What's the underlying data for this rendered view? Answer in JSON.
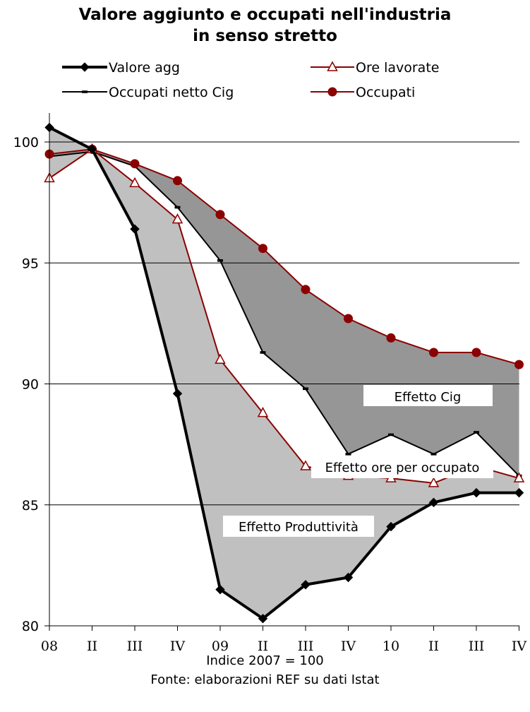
{
  "title_line1": "Valore aggiunto e occupati nell'industria",
  "title_line2": "in senso stretto",
  "footer_line1": "Indice 2007 = 100",
  "footer_line2": "Fonte: elaborazioni REF su dati Istat",
  "chart_data": {
    "type": "line",
    "title": "Valore aggiunto e occupati nell'industria in senso stretto",
    "categories": [
      "08",
      "II",
      "III",
      "IV",
      "09",
      "II",
      "III",
      "IV",
      "10",
      "II",
      "III",
      "IV"
    ],
    "ylim": [
      80,
      101
    ],
    "yticks": [
      80,
      85,
      90,
      95,
      100
    ],
    "grid": true,
    "legend_position": "top",
    "series": [
      {
        "name": "Valore agg",
        "color": "#000000",
        "marker": "diamond",
        "values": [
          100.6,
          99.7,
          96.4,
          89.6,
          81.5,
          80.3,
          81.7,
          82.0,
          84.1,
          85.1,
          85.5,
          85.5
        ]
      },
      {
        "name": "Ore lavorate",
        "color": "#8b0000",
        "marker": "triangle-open",
        "values": [
          98.5,
          99.7,
          98.3,
          96.8,
          91.0,
          88.8,
          86.6,
          86.2,
          86.1,
          85.9,
          86.6,
          86.1
        ]
      },
      {
        "name": "Occupati netto Cig",
        "color": "#000000",
        "marker": "dash",
        "values": [
          99.4,
          99.6,
          99.0,
          97.3,
          95.1,
          91.3,
          89.8,
          87.1,
          87.9,
          87.1,
          88.0,
          86.2
        ]
      },
      {
        "name": "Occupati",
        "color": "#8b0000",
        "marker": "circle",
        "values": [
          99.5,
          99.7,
          99.1,
          98.4,
          97.0,
          95.6,
          93.9,
          92.7,
          91.9,
          91.3,
          91.3,
          90.8
        ]
      }
    ],
    "annotations": [
      "Effetto Cig",
      "Effetto ore per occupato",
      "Effetto Produttività"
    ]
  }
}
